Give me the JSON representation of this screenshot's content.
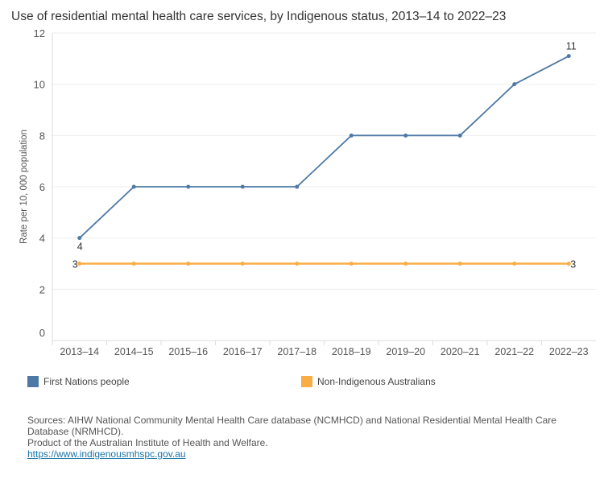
{
  "title": "Use of residential mental health care services, by Indigenous status, 2013–14 to 2022–23",
  "chart_data": {
    "type": "line",
    "title": "Use of residential mental health care services, by Indigenous status, 2013–14 to 2022–23",
    "xlabel": "",
    "ylabel": "Rate per 10, 000 population",
    "ylim": [
      0,
      12
    ],
    "yticks": [
      "0",
      "2",
      "4",
      "6",
      "8",
      "10",
      "12"
    ],
    "grid": true,
    "legend": "bottom",
    "categories": [
      "2013–14",
      "2014–15",
      "2015–16",
      "2016–17",
      "2017–18",
      "2018–19",
      "2019–20",
      "2020–21",
      "2021–22",
      "2022–23"
    ],
    "series": [
      {
        "name": "First Nations people",
        "color": "#4e79a7",
        "values": [
          4,
          6,
          6,
          6,
          6,
          8,
          8,
          8,
          10,
          11.1
        ],
        "labels": {
          "first": "4",
          "last": "11"
        }
      },
      {
        "name": "Non-Indigenous Australians",
        "color": "#f9ad45",
        "values": [
          3,
          3,
          3,
          3,
          3,
          3,
          3,
          3,
          3,
          3
        ],
        "labels": {
          "first": "3",
          "last": "3"
        }
      }
    ]
  },
  "footer": {
    "sources": "Sources: AIHW National Community Mental Health Care database (NCMHCD) and National Residential Mental Health Care Database (NRMHCD).",
    "product": "Product of the Australian Institute of Health and Welfare.",
    "link": "https://www.indigenousmhspc.gov.au"
  }
}
